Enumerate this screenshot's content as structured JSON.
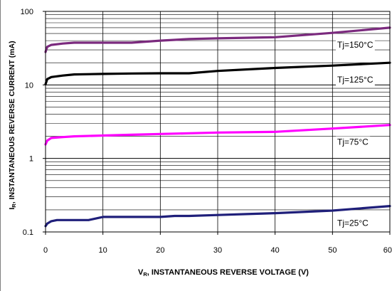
{
  "chart_data": {
    "type": "line",
    "title": "",
    "xlabel": "V",
    "xlabel_sub": "R",
    "xlabel_rest": ", INSTANTANEOUS REVERSE VOLTAGE (V)",
    "ylabel": "I",
    "ylabel_sub": "R",
    "ylabel_rest": ", INSTANTANEOUS REVERSE CURRENT (mA)",
    "xlim": [
      0,
      60
    ],
    "ylim": [
      0.1,
      100
    ],
    "yscale": "log",
    "grid": true,
    "x_ticks": [
      "0",
      "10",
      "20",
      "30",
      "40",
      "50",
      "60"
    ],
    "y_ticks": [
      "0.1",
      "1",
      "10",
      "100"
    ],
    "series": [
      {
        "name": "Tj=150°C",
        "color": "#7b2a7e",
        "x": [
          0,
          0.3,
          1,
          3,
          5,
          10,
          15,
          20,
          25,
          30,
          40,
          50,
          60
        ],
        "y": [
          28,
          33,
          35,
          36.5,
          37.5,
          37.5,
          37.5,
          40,
          42,
          43,
          44.5,
          51,
          60
        ]
      },
      {
        "name": "Tj=125°C",
        "color": "#000000",
        "x": [
          0,
          0.3,
          1,
          3,
          5,
          10,
          15,
          20,
          25,
          30,
          40,
          50,
          60
        ],
        "y": [
          10.2,
          12,
          12.8,
          13.4,
          13.9,
          14.1,
          14.3,
          14.4,
          14.4,
          15.5,
          17,
          18.3,
          20
        ]
      },
      {
        "name": "Tj=75°C",
        "color": "#ff00ff",
        "x": [
          0,
          0.3,
          1,
          3,
          5,
          10,
          15,
          20,
          25,
          30,
          40,
          50,
          60
        ],
        "y": [
          1.55,
          1.75,
          1.9,
          1.95,
          2.0,
          2.05,
          2.1,
          2.15,
          2.2,
          2.25,
          2.3,
          2.55,
          2.85
        ]
      },
      {
        "name": "Tj=25°C",
        "color": "#1f1f7a",
        "x": [
          0,
          0.3,
          1,
          2,
          5,
          7.5,
          10,
          15,
          20,
          22.5,
          25,
          30,
          35,
          40,
          50,
          60
        ],
        "y": [
          0.12,
          0.13,
          0.14,
          0.145,
          0.145,
          0.145,
          0.16,
          0.16,
          0.16,
          0.165,
          0.165,
          0.17,
          0.175,
          0.18,
          0.195,
          0.225
        ]
      }
    ]
  }
}
